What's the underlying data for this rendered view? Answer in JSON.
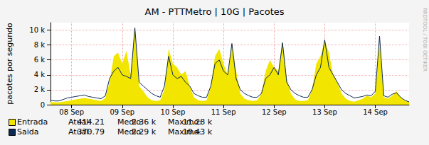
{
  "chart_data": {
    "type": "line",
    "title": "AM - PTTMetro | 10G | Pacotes",
    "y_label": "pacotes por segundo",
    "annotation": "RRDTOOL / TOBI OETIKER",
    "categories": [
      null,
      null,
      null,
      null,
      null,
      "08 Sep",
      null,
      null,
      null,
      null,
      null,
      null,
      null,
      null,
      null,
      null,
      null,
      "09 Sep",
      null,
      null,
      null,
      null,
      null,
      null,
      null,
      null,
      null,
      null,
      null,
      "10 Sep",
      null,
      null,
      null,
      null,
      null,
      null,
      null,
      null,
      null,
      null,
      null,
      "11 Sep",
      null,
      null,
      null,
      null,
      null,
      null,
      null,
      null,
      null,
      null,
      null,
      "12 Sep",
      null,
      null,
      null,
      null,
      null,
      null,
      null,
      null,
      null,
      null,
      null,
      "13 Sep",
      null,
      null,
      null,
      null,
      null,
      null,
      null,
      null,
      null,
      null,
      null,
      "14 Sep",
      null,
      null,
      null,
      null,
      null,
      null,
      null,
      null
    ],
    "ylim": [
      0,
      11000
    ],
    "yticks": [
      0,
      {
        "value": 2000,
        "label": "2 k"
      },
      {
        "value": 4000,
        "label": "4 k"
      },
      {
        "value": 6000,
        "label": "6 k"
      },
      {
        "value": 8000,
        "label": "8 k"
      },
      {
        "value": 10000,
        "label": "10 k"
      }
    ],
    "grid": true,
    "legend": "bottom",
    "stat_labels": [
      "Atual:",
      "Medio:",
      "Maximo:"
    ],
    "series": [
      {
        "name": "Entrada",
        "type": "area",
        "color": "#f2e600",
        "current": {
          "value": 414.21,
          "label": "414.21"
        },
        "mean": {
          "value": 2360,
          "label": "2.36 k"
        },
        "max": {
          "value": 11280,
          "label": "11.28 k"
        },
        "values": [
          400,
          300,
          300,
          400,
          500,
          600,
          700,
          800,
          900,
          800,
          700,
          600,
          500,
          900,
          3000,
          6500,
          7000,
          5500,
          7200,
          4000,
          10400,
          2500,
          1800,
          1000,
          600,
          500,
          600,
          2000,
          7500,
          5500,
          5000,
          4000,
          4500,
          2500,
          1000,
          600,
          500,
          600,
          2500,
          6500,
          7500,
          5500,
          4000,
          8000,
          4500,
          1500,
          800,
          600,
          500,
          600,
          1500,
          4500,
          6000,
          5000,
          4500,
          8500,
          3500,
          1500,
          700,
          500,
          500,
          600,
          2000,
          5500,
          6500,
          8500,
          7000,
          4000,
          3000,
          1500,
          800,
          500,
          400,
          600,
          800,
          1200,
          1000,
          1500,
          9000,
          1000,
          800,
          1200,
          1800,
          1000,
          500,
          414.21
        ]
      },
      {
        "name": "Saida",
        "type": "line",
        "color": "#0b2a52",
        "current": {
          "value": 370.79,
          "label": "370.79"
        },
        "mean": {
          "value": 2290,
          "label": "2.29 k"
        },
        "max": {
          "value": 10430,
          "label": "10.43 k"
        },
        "values": [
          600,
          500,
          500,
          700,
          900,
          1000,
          1100,
          1200,
          1300,
          1100,
          1000,
          900,
          800,
          1200,
          3500,
          4500,
          5000,
          4000,
          3800,
          3500,
          10300,
          3000,
          2500,
          2000,
          1500,
          1200,
          1000,
          2500,
          6500,
          4000,
          3500,
          3800,
          3000,
          2500,
          1500,
          1200,
          1000,
          1000,
          2500,
          5500,
          6000,
          4500,
          4000,
          8200,
          3500,
          2000,
          1500,
          1200,
          1000,
          1000,
          1500,
          3500,
          4000,
          5000,
          4000,
          8300,
          3000,
          2000,
          1500,
          1200,
          1000,
          1000,
          2000,
          4000,
          5000,
          8700,
          5000,
          4000,
          3000,
          2000,
          1500,
          1200,
          900,
          1000,
          1100,
          1300,
          1200,
          1800,
          9200,
          1200,
          1000,
          1400,
          1600,
          1000,
          600,
          370.79
        ]
      }
    ]
  }
}
